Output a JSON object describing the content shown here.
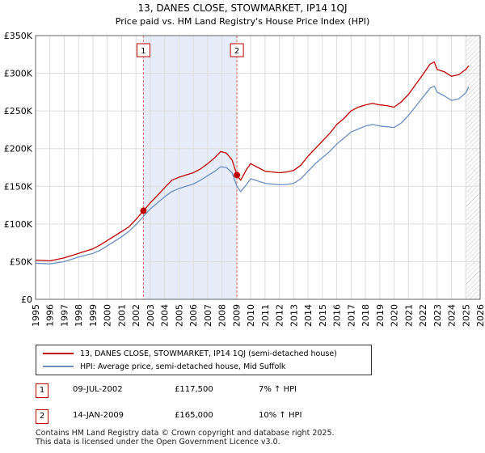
{
  "chart_data": {
    "type": "line",
    "title": "13, DANES CLOSE, STOWMARKET, IP14 1QJ",
    "subtitle": "Price paid vs. HM Land Registry's House Price Index (HPI)",
    "xlabel": "",
    "ylabel": "",
    "xlim": [
      1995,
      2026
    ],
    "ylim": [
      0,
      350000
    ],
    "x_ticks": [
      "1995",
      "1996",
      "1997",
      "1998",
      "1999",
      "2000",
      "2001",
      "2002",
      "2003",
      "2004",
      "2005",
      "2006",
      "2007",
      "2008",
      "2009",
      "2010",
      "2011",
      "2012",
      "2013",
      "2014",
      "2015",
      "2016",
      "2017",
      "2018",
      "2019",
      "2020",
      "2021",
      "2022",
      "2023",
      "2024",
      "2025",
      "2026"
    ],
    "y_ticks": [
      {
        "value": 0,
        "label": "£0"
      },
      {
        "value": 50000,
        "label": "£50K"
      },
      {
        "value": 100000,
        "label": "£100K"
      },
      {
        "value": 150000,
        "label": "£150K"
      },
      {
        "value": 200000,
        "label": "£200K"
      },
      {
        "value": 250000,
        "label": "£250K"
      },
      {
        "value": 300000,
        "label": "£300K"
      },
      {
        "value": 350000,
        "label": "£350K"
      }
    ],
    "grid": true,
    "series": [
      {
        "name": "13, DANES CLOSE, STOWMARKET, IP14 1QJ (semi-detached house)",
        "color": "#c00000",
        "x": [
          1995.0,
          1995.5,
          1996.0,
          1996.5,
          1997.0,
          1997.5,
          1998.0,
          1998.5,
          1999.0,
          1999.5,
          2000.0,
          2000.5,
          2001.0,
          2001.5,
          2002.0,
          2002.52,
          2003.0,
          2003.5,
          2004.0,
          2004.5,
          2005.0,
          2005.5,
          2006.0,
          2006.5,
          2007.0,
          2007.5,
          2007.9,
          2008.3,
          2008.7,
          2009.04,
          2009.3,
          2009.7,
          2010.0,
          2010.5,
          2011.0,
          2011.5,
          2012.0,
          2012.5,
          2013.0,
          2013.5,
          2014.0,
          2014.5,
          2015.0,
          2015.5,
          2016.0,
          2016.5,
          2017.0,
          2017.5,
          2018.0,
          2018.5,
          2019.0,
          2019.5,
          2020.0,
          2020.5,
          2021.0,
          2021.5,
          2022.0,
          2022.5,
          2022.8,
          2023.0,
          2023.5,
          2024.0,
          2024.5,
          2025.0,
          2025.2
        ],
        "values": [
          52000,
          51500,
          51000,
          53000,
          55000,
          58000,
          61000,
          64000,
          67000,
          72000,
          78000,
          84000,
          90000,
          96000,
          106000,
          117500,
          128000,
          138000,
          148000,
          158000,
          162000,
          165000,
          168000,
          173000,
          180000,
          188000,
          196000,
          194000,
          185000,
          165000,
          158000,
          172000,
          180000,
          175000,
          170000,
          169000,
          168000,
          169000,
          171000,
          178000,
          190000,
          200000,
          210000,
          220000,
          232000,
          240000,
          250000,
          255000,
          258000,
          260000,
          258000,
          257000,
          255000,
          262000,
          272000,
          285000,
          298000,
          312000,
          315000,
          305000,
          302000,
          296000,
          298000,
          305000,
          310000
        ]
      },
      {
        "name": "HPI: Average price, semi-detached house, Mid Suffolk",
        "color": "#6a8fc0",
        "x": [
          1995.0,
          1995.5,
          1996.0,
          1996.5,
          1997.0,
          1997.5,
          1998.0,
          1998.5,
          1999.0,
          1999.5,
          2000.0,
          2000.5,
          2001.0,
          2001.5,
          2002.0,
          2002.52,
          2003.0,
          2003.5,
          2004.0,
          2004.5,
          2005.0,
          2005.5,
          2006.0,
          2006.5,
          2007.0,
          2007.5,
          2007.9,
          2008.3,
          2008.7,
          2009.04,
          2009.3,
          2009.7,
          2010.0,
          2010.5,
          2011.0,
          2011.5,
          2012.0,
          2012.5,
          2013.0,
          2013.5,
          2014.0,
          2014.5,
          2015.0,
          2015.5,
          2016.0,
          2016.5,
          2017.0,
          2017.5,
          2018.0,
          2018.5,
          2019.0,
          2019.5,
          2020.0,
          2020.5,
          2021.0,
          2021.5,
          2022.0,
          2022.5,
          2022.8,
          2023.0,
          2023.5,
          2024.0,
          2024.5,
          2025.0,
          2025.2
        ],
        "values": [
          48000,
          47500,
          47000,
          48500,
          50000,
          53000,
          56000,
          58500,
          61000,
          65000,
          71000,
          77000,
          83000,
          90000,
          99000,
          110000,
          120000,
          128000,
          136000,
          143000,
          147000,
          150000,
          153000,
          158000,
          164000,
          170000,
          176000,
          175000,
          168000,
          150000,
          143000,
          152000,
          160000,
          157000,
          154000,
          153000,
          152000,
          152500,
          154000,
          160000,
          170000,
          180000,
          188000,
          196000,
          206000,
          214000,
          222000,
          226000,
          230000,
          232000,
          230000,
          229000,
          228000,
          234000,
          244000,
          256000,
          268000,
          280000,
          283000,
          275000,
          270000,
          264000,
          266000,
          274000,
          282000
        ]
      }
    ],
    "markers": [
      {
        "label": "1",
        "x": 2002.52,
        "value": 117500
      },
      {
        "label": "2",
        "x": 2009.04,
        "value": 165000
      }
    ],
    "shaded_range": [
      2002.52,
      2009.04
    ],
    "hatched_from": 2025.0
  },
  "legend": {
    "property_label": "13, DANES CLOSE, STOWMARKET, IP14 1QJ (semi-detached house)",
    "hpi_label": "HPI: Average price, semi-detached house, Mid Suffolk"
  },
  "transactions": [
    {
      "num": "1",
      "date": "09-JUL-2002",
      "price": "£117,500",
      "hpi": "7% ↑ HPI"
    },
    {
      "num": "2",
      "date": "14-JAN-2009",
      "price": "£165,000",
      "hpi": "10% ↑ HPI"
    }
  ],
  "footer": {
    "line1": "Contains HM Land Registry data © Crown copyright and database right 2025.",
    "line2": "This data is licensed under the Open Government Licence v3.0."
  },
  "colors": {
    "property": "#c00000",
    "hpi": "#6a8fc0",
    "shade": "#e6ecf8",
    "grid": "#dddddd"
  }
}
